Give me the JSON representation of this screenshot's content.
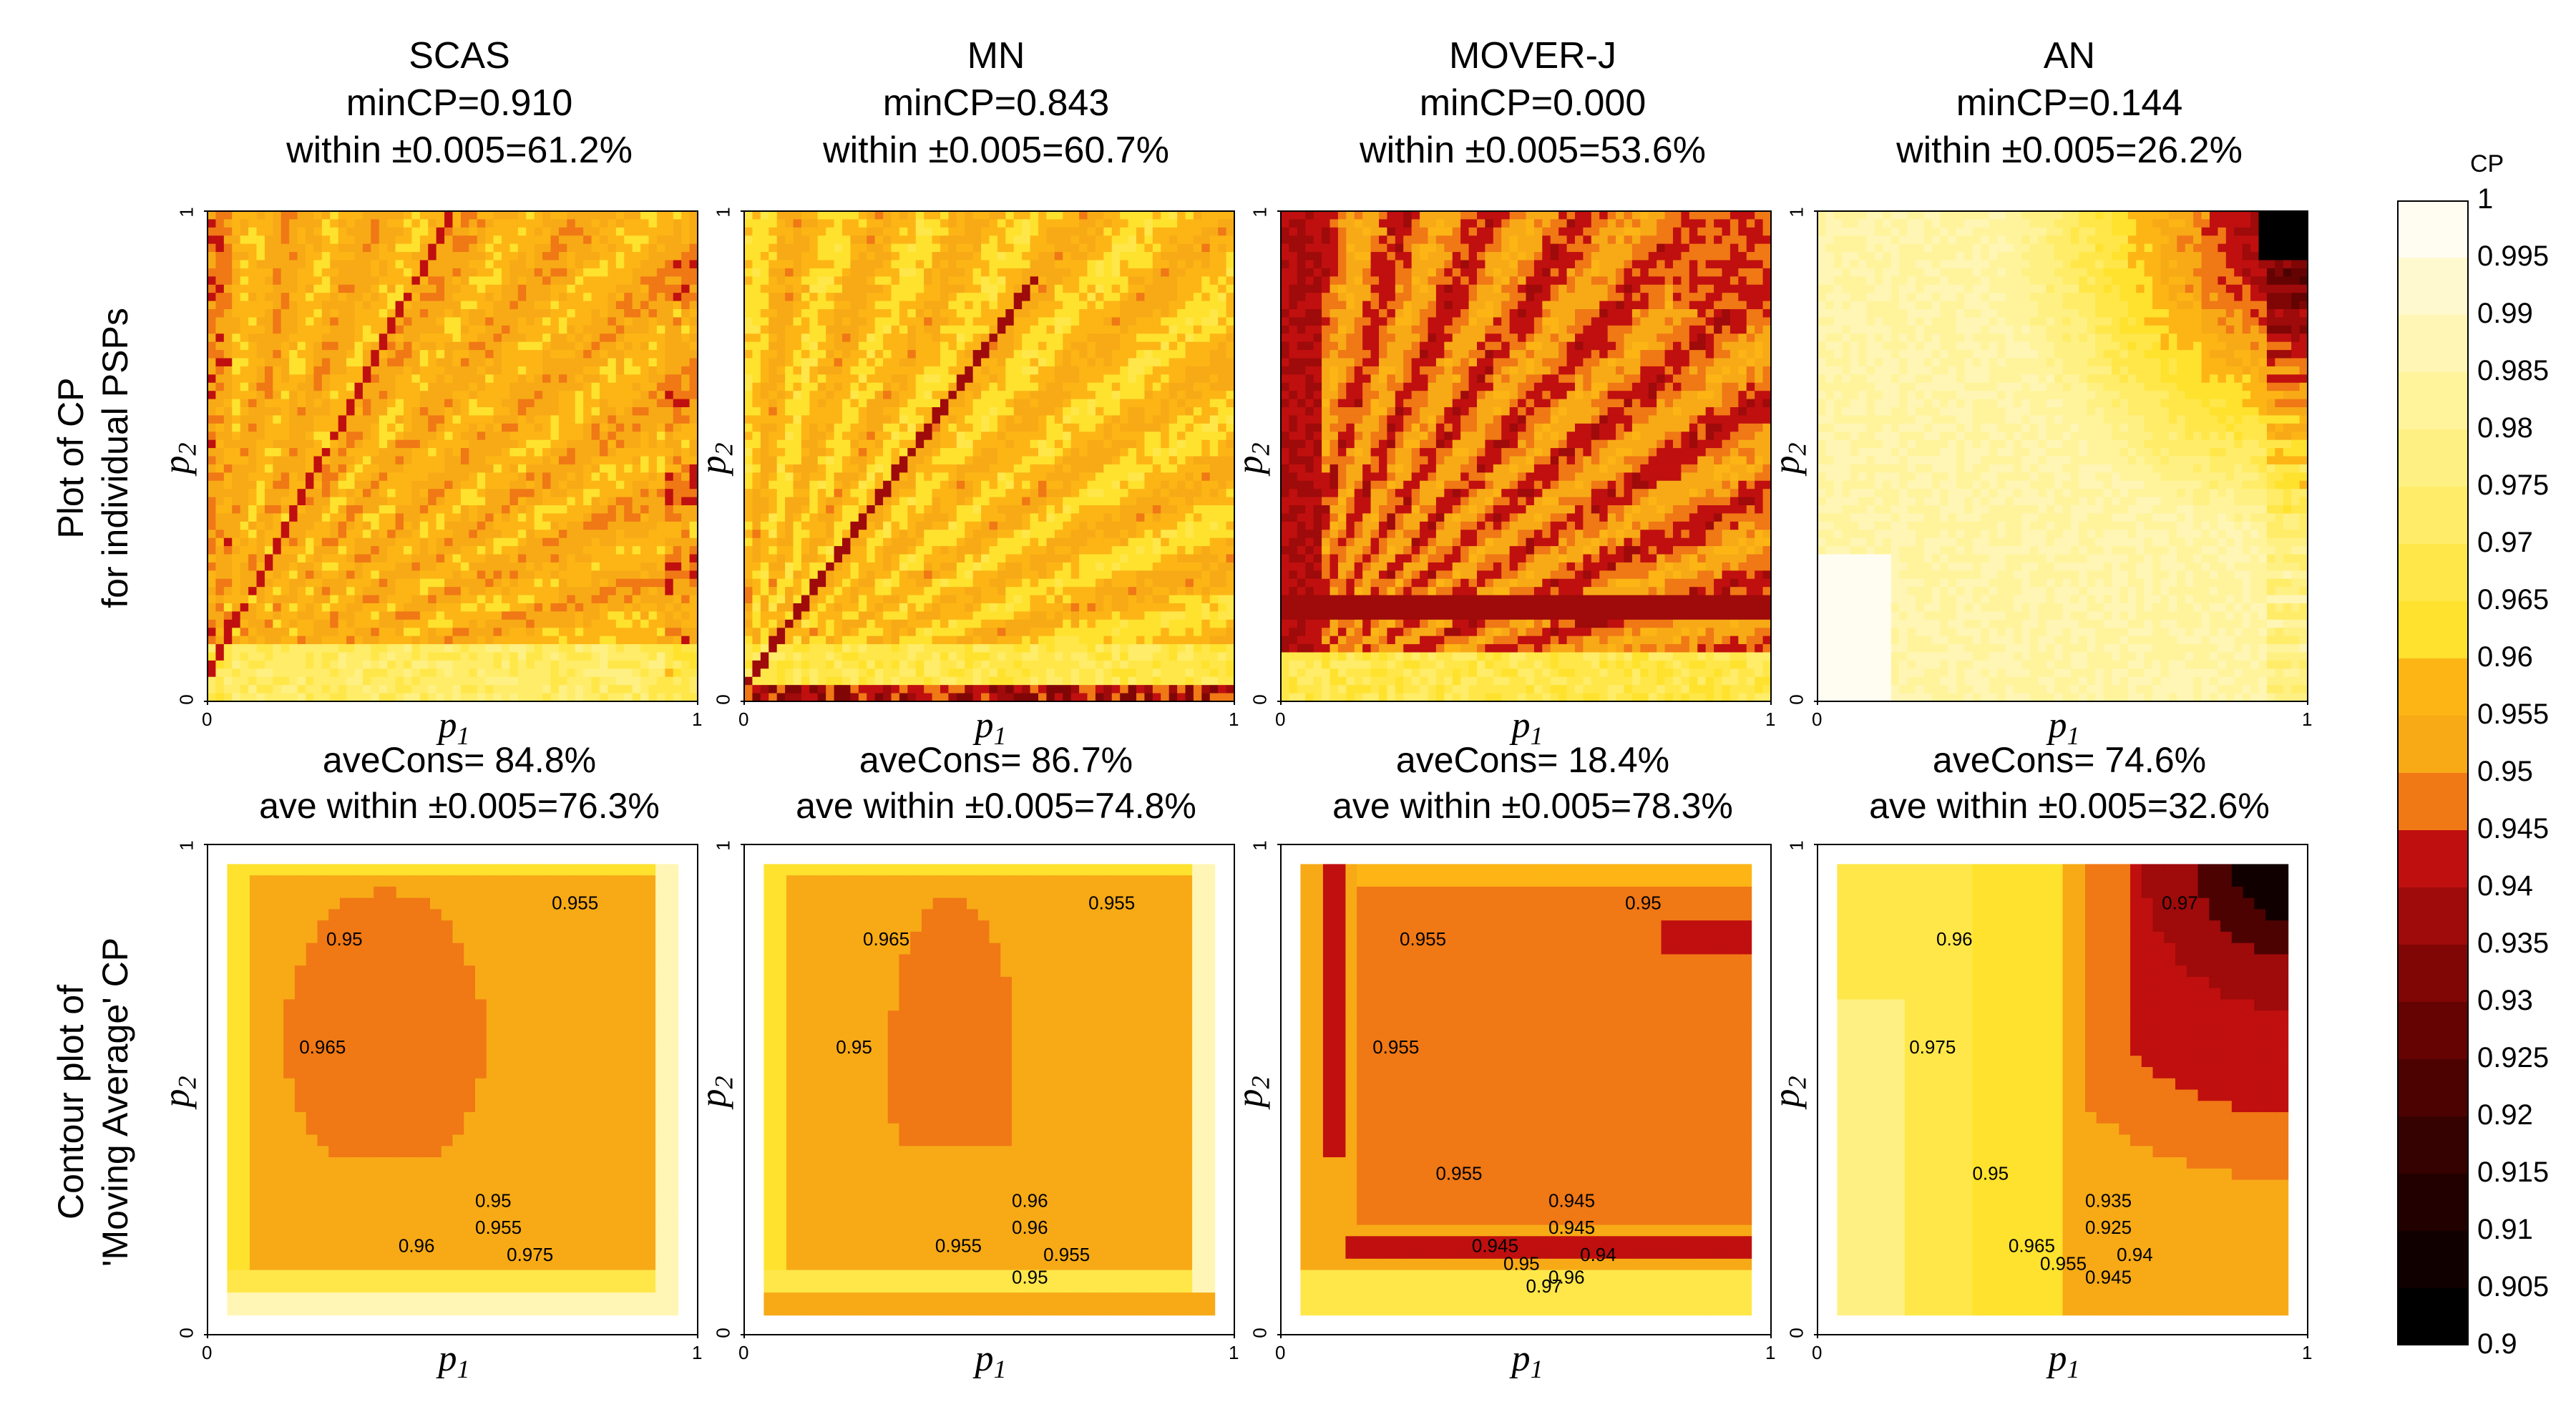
{
  "figure": {
    "row_labels": [
      [
        "Plot of CP",
        "for individual PSPs"
      ],
      [
        "Contour plot of",
        "'Moving Average' CP"
      ]
    ],
    "axis": {
      "x_name": "p",
      "x_sub": "1",
      "y_name": "p",
      "y_sub": "2",
      "tick_min": "0",
      "tick_max": "1"
    },
    "colorbar": {
      "title": "CP",
      "min": 0.9,
      "max": 1.0,
      "step": 0.005,
      "labels": [
        "1",
        "0.995",
        "0.99",
        "0.985",
        "0.98",
        "0.975",
        "0.97",
        "0.965",
        "0.96",
        "0.955",
        "0.95",
        "0.945",
        "0.94",
        "0.935",
        "0.93",
        "0.925",
        "0.92",
        "0.915",
        "0.91",
        "0.905",
        "0.9"
      ]
    },
    "colors": {
      "band_0.995": "#fffdf2",
      "band_0.99": "#fff9cf",
      "band_0.985": "#fff6b5",
      "band_0.98": "#fff39c",
      "band_0.975": "#fff083",
      "band_0.97": "#ffec68",
      "band_0.965": "#ffe74a",
      "band_0.96": "#ffe22e",
      "band_0.955": "#fdb515",
      "band_0.95": "#f7aa16",
      "band_0.945": "#f07815",
      "band_0.94": "#c00f0f",
      "band_0.935": "#9f0a0a",
      "band_0.93": "#800606",
      "band_0.925": "#650303",
      "band_0.92": "#4d0202",
      "band_0.915": "#360101",
      "band_0.91": "#220000",
      "band_0.905": "#110000",
      "band_0.9": "#000000"
    }
  },
  "chart_data": [
    {
      "method": "SCAS",
      "row": "individual PSPs",
      "type": "heatmap",
      "title": "SCAS",
      "stats": [
        "minCP=0.910",
        "within ±0.005=61.2%"
      ],
      "xlabel": "p1",
      "ylabel": "p2",
      "xlim": [
        0,
        1
      ],
      "ylim": [
        0,
        1
      ],
      "zlim": [
        0.9,
        1.0
      ]
    },
    {
      "method": "MN",
      "row": "individual PSPs",
      "type": "heatmap",
      "title": "MN",
      "stats": [
        "minCP=0.843",
        "within ±0.005=60.7%"
      ],
      "xlabel": "p1",
      "ylabel": "p2",
      "xlim": [
        0,
        1
      ],
      "ylim": [
        0,
        1
      ],
      "zlim": [
        0.9,
        1.0
      ]
    },
    {
      "method": "MOVER-J",
      "row": "individual PSPs",
      "type": "heatmap",
      "title": "MOVER-J",
      "stats": [
        "minCP=0.000",
        "within ±0.005=53.6%"
      ],
      "xlabel": "p1",
      "ylabel": "p2",
      "xlim": [
        0,
        1
      ],
      "ylim": [
        0,
        1
      ],
      "zlim": [
        0.9,
        1.0
      ]
    },
    {
      "method": "AN",
      "row": "individual PSPs",
      "type": "heatmap",
      "title": "AN",
      "stats": [
        "minCP=0.144",
        "within ±0.005=26.2%"
      ],
      "xlabel": "p1",
      "ylabel": "p2",
      "xlim": [
        0,
        1
      ],
      "ylim": [
        0,
        1
      ],
      "zlim": [
        0.9,
        1.0
      ]
    },
    {
      "method": "SCAS",
      "row": "moving average contour",
      "type": "heatmap",
      "stats": [
        "aveCons= 84.8%",
        "ave within ±0.005=76.3%"
      ],
      "xlabel": "p1",
      "ylabel": "p2",
      "xlim": [
        0,
        1
      ],
      "ylim": [
        0,
        1
      ],
      "contour_labels": [
        "0.95",
        "0.955",
        "0.965",
        "0.96",
        "0.955",
        "0.95",
        "0.975"
      ]
    },
    {
      "method": "MN",
      "row": "moving average contour",
      "type": "heatmap",
      "stats": [
        "aveCons= 86.7%",
        "ave within ±0.005=74.8%"
      ],
      "xlabel": "p1",
      "ylabel": "p2",
      "xlim": [
        0,
        1
      ],
      "ylim": [
        0,
        1
      ],
      "contour_labels": [
        "0.965",
        "0.955",
        "0.95",
        "0.955",
        "0.96",
        "0.96",
        "0.955",
        "0.95"
      ]
    },
    {
      "method": "MOVER-J",
      "row": "moving average contour",
      "type": "heatmap",
      "stats": [
        "aveCons= 18.4%",
        "ave within ±0.005=78.3%"
      ],
      "xlabel": "p1",
      "ylabel": "p2",
      "xlim": [
        0,
        1
      ],
      "ylim": [
        0,
        1
      ],
      "contour_labels": [
        "0.955",
        "0.95",
        "0.955",
        "0.945",
        "0.945",
        "0.945",
        "0.94",
        "0.96",
        "0.955",
        "0.95",
        "0.97"
      ]
    },
    {
      "method": "AN",
      "row": "moving average contour",
      "type": "heatmap",
      "stats": [
        "aveCons= 74.6%",
        "ave within ±0.005=32.6%"
      ],
      "xlabel": "p1",
      "ylabel": "p2",
      "xlim": [
        0,
        1
      ],
      "ylim": [
        0,
        1
      ],
      "contour_labels": [
        "0.96",
        "0.97",
        "0.975",
        "0.965",
        "0.925",
        "0.935",
        "0.94",
        "0.945",
        "0.95",
        "0.955"
      ]
    }
  ]
}
